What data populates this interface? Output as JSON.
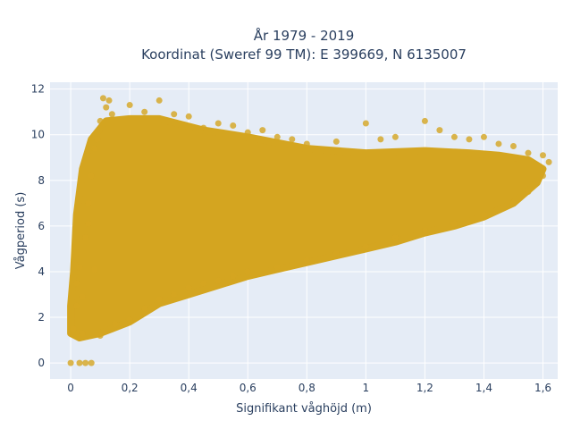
{
  "chart_data": {
    "type": "scatter",
    "title_line1": "År 1979 - 2019",
    "title_line2": "Koordinat (Sweref 99 TM): E 399669, N 6135007",
    "xlabel": "Signifikant våghöjd (m)",
    "ylabel": "Vågperiod (s)",
    "xlim": [
      -0.07,
      1.65
    ],
    "ylim": [
      -0.7,
      12.3
    ],
    "x_ticks": [
      0,
      0.2,
      0.4,
      0.6,
      0.8,
      1,
      1.2,
      1.4,
      1.6
    ],
    "x_tick_labels": [
      "0",
      "0,2",
      "0,4",
      "0,6",
      "0,8",
      "1",
      "1,2",
      "1,4",
      "1,6"
    ],
    "y_ticks": [
      0,
      2,
      4,
      6,
      8,
      10,
      12
    ],
    "y_tick_labels": [
      "0",
      "2",
      "4",
      "6",
      "8",
      "10",
      "12"
    ],
    "grid": true,
    "background_color": "#e5ecf6",
    "marker_color": "#d4a520",
    "series": [
      {
        "points": [
          [
            0.0,
            0.0
          ],
          [
            0.03,
            0.0
          ],
          [
            0.05,
            0.0
          ],
          [
            0.07,
            0.0
          ],
          [
            0.01,
            1.5
          ],
          [
            0.02,
            2.5
          ],
          [
            0.02,
            3.5
          ],
          [
            0.03,
            4.2
          ],
          [
            0.04,
            1.3
          ],
          [
            0.05,
            5.5
          ],
          [
            0.06,
            7.0
          ],
          [
            0.07,
            8.2
          ],
          [
            0.08,
            9.4
          ],
          [
            0.09,
            9.8
          ],
          [
            0.1,
            10.6
          ],
          [
            0.11,
            11.6
          ],
          [
            0.12,
            11.2
          ],
          [
            0.13,
            11.5
          ],
          [
            0.14,
            10.9
          ],
          [
            0.1,
            1.2
          ],
          [
            0.15,
            1.7
          ],
          [
            0.2,
            1.9
          ],
          [
            0.25,
            2.4
          ],
          [
            0.3,
            2.8
          ],
          [
            0.35,
            3.0
          ],
          [
            0.4,
            3.3
          ],
          [
            0.45,
            3.5
          ],
          [
            0.5,
            3.6
          ],
          [
            0.55,
            3.8
          ],
          [
            0.6,
            4.0
          ],
          [
            0.7,
            4.2
          ],
          [
            0.8,
            4.5
          ],
          [
            0.9,
            4.8
          ],
          [
            1.0,
            5.1
          ],
          [
            1.1,
            5.5
          ],
          [
            1.2,
            5.8
          ],
          [
            1.3,
            6.1
          ],
          [
            1.4,
            6.5
          ],
          [
            1.5,
            7.0
          ],
          [
            1.55,
            7.5
          ],
          [
            1.6,
            8.2
          ],
          [
            1.62,
            8.8
          ],
          [
            1.6,
            9.1
          ],
          [
            0.2,
            11.3
          ],
          [
            0.25,
            11.0
          ],
          [
            0.3,
            11.5
          ],
          [
            0.35,
            10.9
          ],
          [
            0.4,
            10.8
          ],
          [
            0.45,
            10.3
          ],
          [
            0.5,
            10.5
          ],
          [
            0.55,
            10.4
          ],
          [
            0.6,
            10.1
          ],
          [
            0.65,
            10.2
          ],
          [
            0.7,
            9.9
          ],
          [
            0.75,
            9.8
          ],
          [
            0.8,
            9.6
          ],
          [
            0.9,
            9.7
          ],
          [
            1.0,
            10.5
          ],
          [
            1.05,
            9.8
          ],
          [
            1.1,
            9.9
          ],
          [
            1.2,
            10.6
          ],
          [
            1.25,
            10.2
          ],
          [
            1.3,
            9.9
          ],
          [
            1.35,
            9.8
          ],
          [
            1.4,
            9.9
          ],
          [
            1.45,
            9.6
          ],
          [
            1.5,
            9.5
          ],
          [
            1.55,
            9.2
          ],
          [
            0.08,
            4.1
          ],
          [
            0.06,
            6.1
          ],
          [
            0.04,
            2.9
          ]
        ]
      }
    ]
  }
}
